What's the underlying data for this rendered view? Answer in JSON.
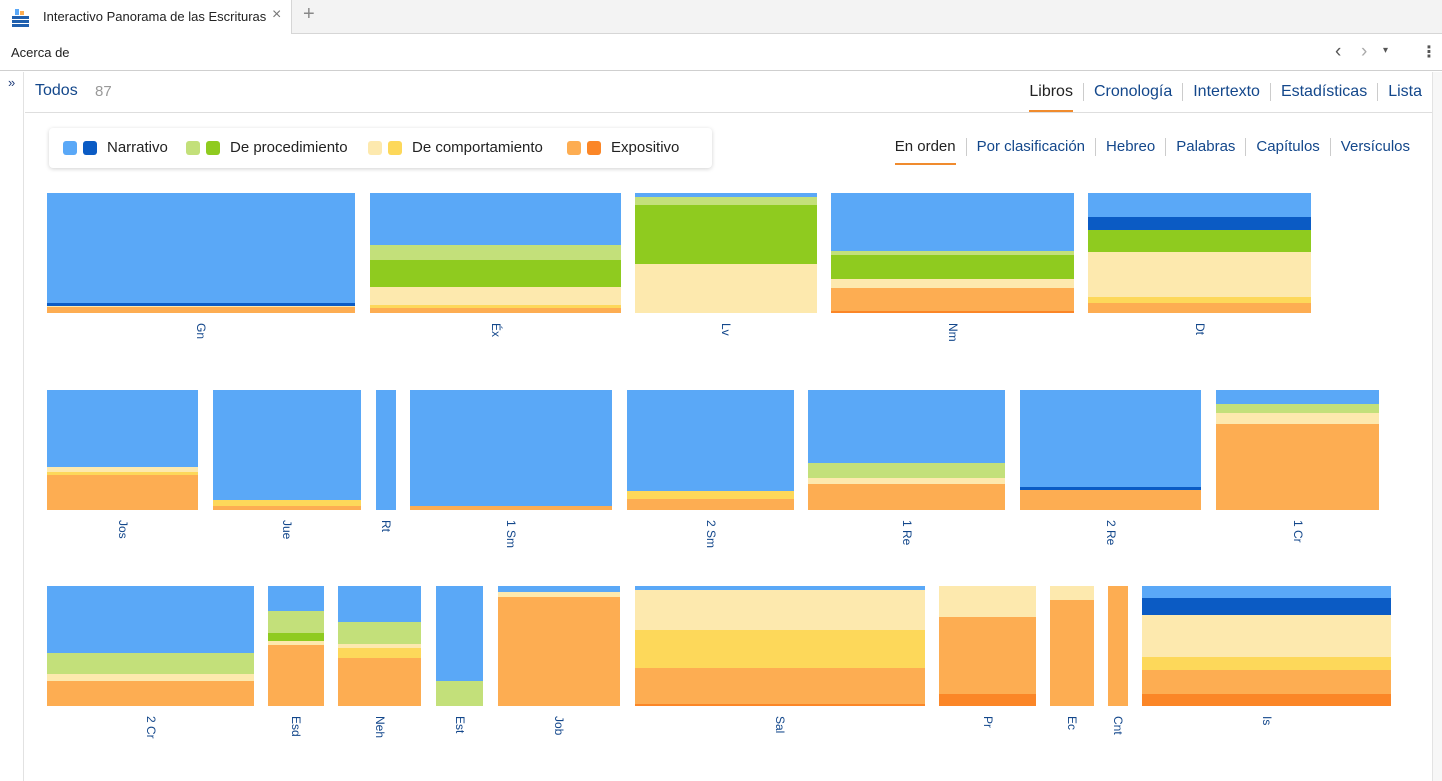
{
  "tab": {
    "title": "Interactivo Panorama de las Escrituras",
    "close": "×",
    "add": "+"
  },
  "toolbar": {
    "about": "Acerca de",
    "back": "‹",
    "forward": "›",
    "dropdown": "▾",
    "more": "⋮"
  },
  "sidebar": {
    "toggle": "»"
  },
  "filter": {
    "all_label": "Todos",
    "count": "87"
  },
  "main_nav": [
    {
      "label": "Libros",
      "active": true
    },
    {
      "label": "Cronología",
      "active": false
    },
    {
      "label": "Intertexto",
      "active": false
    },
    {
      "label": "Estadísticas",
      "active": false
    },
    {
      "label": "Lista",
      "active": false
    }
  ],
  "legend": [
    {
      "label": "Narrativo",
      "colors": [
        "#5aa8f7",
        "#0b5bc4"
      ]
    },
    {
      "label": "De procedimiento",
      "colors": [
        "#c3e07a",
        "#8fcb1f"
      ]
    },
    {
      "label": "De comportamiento",
      "colors": [
        "#fde9ae",
        "#fdd85a"
      ]
    },
    {
      "label": "Expositivo",
      "colors": [
        "#fdad52",
        "#fb8627"
      ]
    }
  ],
  "sort_nav": [
    {
      "label": "En orden",
      "active": true
    },
    {
      "label": "Por clasificación",
      "active": false
    },
    {
      "label": "Hebreo",
      "active": false
    },
    {
      "label": "Palabras",
      "active": false
    },
    {
      "label": "Capítulos",
      "active": false
    },
    {
      "label": "Versículos",
      "active": false
    }
  ],
  "colors": {
    "narr": "#5aa8f7",
    "narr2": "#0b5bc4",
    "proc": "#c3e07a",
    "proc2": "#8fcb1f",
    "beh": "#fde9ae",
    "beh2": "#fdd85a",
    "exp": "#fdad52",
    "exp2": "#fb8627"
  },
  "books": [
    {
      "abbr": "Gn",
      "segments": [
        [
          "narr",
          0.92
        ],
        [
          "narr2",
          0.02
        ],
        [
          "beh",
          0.01
        ],
        [
          "exp",
          0.05
        ]
      ]
    },
    {
      "abbr": "Éx",
      "segments": [
        [
          "narr",
          0.43
        ],
        [
          "proc",
          0.13
        ],
        [
          "proc2",
          0.22
        ],
        [
          "beh",
          0.15
        ],
        [
          "beh2",
          0.03
        ],
        [
          "exp",
          0.04
        ]
      ]
    },
    {
      "abbr": "Lv",
      "segments": [
        [
          "narr",
          0.03
        ],
        [
          "proc",
          0.07
        ],
        [
          "proc2",
          0.49
        ],
        [
          "beh",
          0.41
        ]
      ]
    },
    {
      "abbr": "Nm",
      "segments": [
        [
          "narr",
          0.48
        ],
        [
          "proc",
          0.04
        ],
        [
          "proc2",
          0.2
        ],
        [
          "beh",
          0.07
        ],
        [
          "exp",
          0.19
        ],
        [
          "exp2",
          0.02
        ]
      ]
    },
    {
      "abbr": "Dt",
      "segments": [
        [
          "narr",
          0.2
        ],
        [
          "narr2",
          0.11
        ],
        [
          "proc2",
          0.18
        ],
        [
          "beh",
          0.38
        ],
        [
          "beh2",
          0.05
        ],
        [
          "exp",
          0.08
        ]
      ]
    },
    {
      "abbr": "Jos",
      "segments": [
        [
          "narr",
          0.64
        ],
        [
          "beh",
          0.04
        ],
        [
          "beh2",
          0.03
        ],
        [
          "exp",
          0.29
        ]
      ]
    },
    {
      "abbr": "Jue",
      "segments": [
        [
          "narr",
          0.92
        ],
        [
          "beh2",
          0.05
        ],
        [
          "exp",
          0.03
        ]
      ]
    },
    {
      "abbr": "Rt",
      "segments": [
        [
          "narr",
          1.0
        ]
      ]
    },
    {
      "abbr": "1 Sm",
      "segments": [
        [
          "narr",
          0.97
        ],
        [
          "exp",
          0.03
        ]
      ]
    },
    {
      "abbr": "2 Sm",
      "segments": [
        [
          "narr",
          0.84
        ],
        [
          "beh2",
          0.07
        ],
        [
          "exp",
          0.09
        ]
      ]
    },
    {
      "abbr": "1 Re",
      "segments": [
        [
          "narr",
          0.61
        ],
        [
          "proc",
          0.12
        ],
        [
          "beh",
          0.05
        ],
        [
          "exp",
          0.22
        ]
      ]
    },
    {
      "abbr": "2 Re",
      "segments": [
        [
          "narr",
          0.81
        ],
        [
          "narr2",
          0.02
        ],
        [
          "exp",
          0.17
        ]
      ]
    },
    {
      "abbr": "1 Cr",
      "segments": [
        [
          "narr",
          0.12
        ],
        [
          "proc",
          0.07
        ],
        [
          "beh",
          0.09
        ],
        [
          "exp",
          0.72
        ]
      ]
    },
    {
      "abbr": "2 Cr",
      "segments": [
        [
          "narr",
          0.56
        ],
        [
          "proc",
          0.17
        ],
        [
          "beh",
          0.06
        ],
        [
          "exp",
          0.21
        ]
      ]
    },
    {
      "abbr": "Esd",
      "segments": [
        [
          "narr",
          0.21
        ],
        [
          "proc",
          0.18
        ],
        [
          "proc2",
          0.07
        ],
        [
          "beh",
          0.03
        ],
        [
          "exp",
          0.51
        ]
      ]
    },
    {
      "abbr": "Neh",
      "segments": [
        [
          "narr",
          0.3
        ],
        [
          "proc",
          0.18
        ],
        [
          "beh",
          0.04
        ],
        [
          "beh2",
          0.08
        ],
        [
          "exp",
          0.4
        ]
      ]
    },
    {
      "abbr": "Est",
      "segments": [
        [
          "narr",
          0.79
        ],
        [
          "proc",
          0.21
        ]
      ]
    },
    {
      "abbr": "Job",
      "segments": [
        [
          "narr",
          0.05
        ],
        [
          "beh",
          0.04
        ],
        [
          "exp",
          0.91
        ]
      ]
    },
    {
      "abbr": "Sal",
      "segments": [
        [
          "narr",
          0.03
        ],
        [
          "beh",
          0.34
        ],
        [
          "beh2",
          0.31
        ],
        [
          "exp",
          0.3
        ],
        [
          "exp2",
          0.02
        ]
      ]
    },
    {
      "abbr": "Pr",
      "segments": [
        [
          "beh",
          0.26
        ],
        [
          "exp",
          0.64
        ],
        [
          "exp2",
          0.1
        ]
      ]
    },
    {
      "abbr": "Ec",
      "segments": [
        [
          "beh",
          0.12
        ],
        [
          "exp",
          0.88
        ]
      ]
    },
    {
      "abbr": "Cnt",
      "segments": [
        [
          "exp",
          1.0
        ]
      ]
    },
    {
      "abbr": "Is",
      "segments": [
        [
          "narr",
          0.1
        ],
        [
          "narr2",
          0.14
        ],
        [
          "beh",
          0.35
        ],
        [
          "beh2",
          0.11
        ],
        [
          "exp",
          0.2
        ],
        [
          "exp2",
          0.1
        ]
      ]
    }
  ]
}
